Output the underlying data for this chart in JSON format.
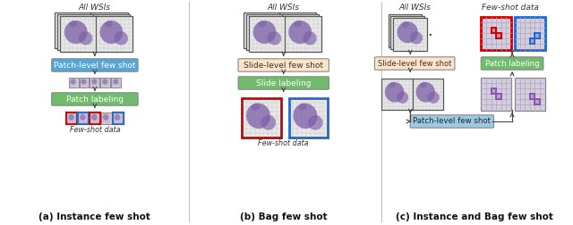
{
  "fig_width": 6.4,
  "fig_height": 2.52,
  "dpi": 100,
  "background": "#ffffff",
  "panel_a_title": "All WSIs",
  "panel_a_box1_text": "Patch-level few shot",
  "panel_a_box1_color": "#5aa4d4",
  "panel_a_box2_text": "Patch labeling",
  "panel_a_box2_color": "#72bb6e",
  "panel_a_bottom_label": "Few-shot data",
  "panel_a_caption": "(a) Instance few shot",
  "panel_b_title": "All WSIs",
  "panel_b_box1_text": "Slide-level few shot",
  "panel_b_box1_color": "#fde4c8",
  "panel_b_box2_text": "Slide labeling",
  "panel_b_box2_color": "#72bb6e",
  "panel_b_bottom_label": "Few-shot data",
  "panel_b_caption": "(b) Bag few shot",
  "panel_c_title": "All WSIs",
  "panel_c_title2": "Few-shot data",
  "panel_c_box1_text": "Slide-level few shot",
  "panel_c_box1_color": "#fde4c8",
  "panel_c_box2_text": "Patch labeling",
  "panel_c_box2_color": "#72bb6e",
  "panel_c_box3_text": "Patch-level few shot",
  "panel_c_box3_color": "#9ecae1",
  "panel_c_caption": "(c) Instance and Bag few shot",
  "wsi_blob_color": "#7b5ea7",
  "patch_border_red": "#cc0000",
  "patch_border_blue": "#2266cc",
  "sep_line_color": "#bbbbbb",
  "grid_color": "#aaaaaa",
  "arrow_color": "#444444"
}
